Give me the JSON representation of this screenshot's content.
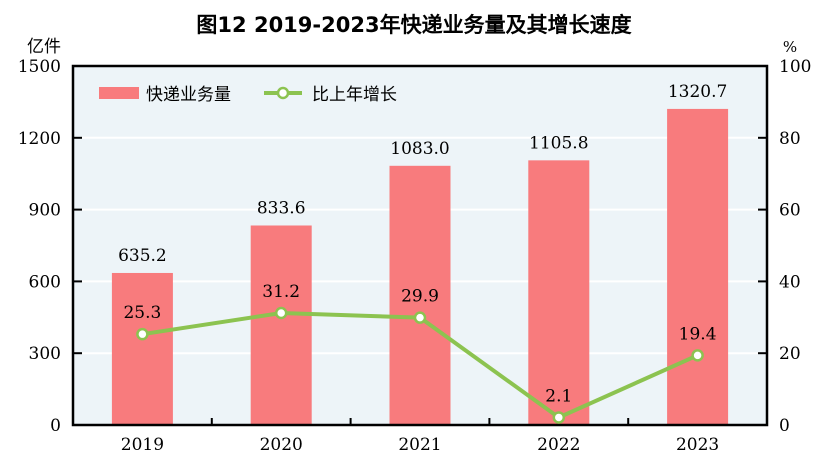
{
  "chart_data": {
    "type": "bar+line",
    "title": "图12   2019-2023年快递业务量及其增长速度",
    "categories": [
      "2019",
      "2020",
      "2021",
      "2022",
      "2023"
    ],
    "series": [
      {
        "name": "快递业务量",
        "type": "bar",
        "axis": "left",
        "values": [
          635.2,
          833.6,
          1083.0,
          1105.8,
          1320.7
        ],
        "labels": [
          "635.2",
          "833.6",
          "1083.0",
          "1105.8",
          "1320.7"
        ],
        "color": "#f87b7d"
      },
      {
        "name": "比上年增长",
        "type": "line",
        "axis": "right",
        "values": [
          25.3,
          31.2,
          29.9,
          2.1,
          19.4
        ],
        "labels": [
          "25.3",
          "31.2",
          "29.9",
          "2.1",
          "19.4"
        ],
        "color": "#8cc350"
      }
    ],
    "left_axis": {
      "unit": "亿件",
      "ylim": [
        0,
        1500
      ],
      "ticks": [
        "0",
        "300",
        "600",
        "900",
        "1200",
        "1500"
      ]
    },
    "right_axis": {
      "unit": "%",
      "ylim": [
        0,
        100
      ],
      "ticks": [
        "0",
        "20",
        "40",
        "60",
        "80",
        "100"
      ]
    },
    "grid": true,
    "legend": "top-left",
    "plot_background": "#edf4f8"
  }
}
